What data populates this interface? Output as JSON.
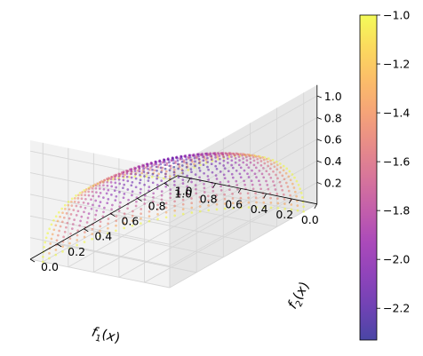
{
  "chart_data": {
    "type": "scatter",
    "projection": "3d",
    "description_of_points": "dense point cloud on the surface of a spherical octant f1^2+f2^2+f3^2=1, f1,f2,f3 in [0,1], colored by value",
    "surface": "unit sphere octant",
    "xlabel": "$f_1(x)$",
    "ylabel": "$f_2(x)$",
    "zlabel": "",
    "xlim": [
      0,
      1.1
    ],
    "ylim": [
      0,
      1.1
    ],
    "zlim": [
      0,
      1.1
    ],
    "xticks": [
      "0.0",
      "0.2",
      "0.4",
      "0.6",
      "0.8",
      "1.0"
    ],
    "yticks": [
      "0.0",
      "0.2",
      "0.4",
      "0.6",
      "0.8",
      "1.0"
    ],
    "zticks": [
      "0.2",
      "0.4",
      "0.6",
      "0.8",
      "1.0"
    ],
    "colormap": "plasma",
    "alpha": 0.5,
    "grid": true,
    "colorbar": {
      "vmin": -2.33,
      "vmax": -1.0,
      "ticks": [
        "−2.2",
        "−2.0",
        "−1.8",
        "−1.6",
        "−1.4",
        "−1.2",
        "−1.0"
      ]
    }
  },
  "colors": {
    "pane": "#f2f2f2",
    "grid": "#d6d6d6",
    "axis": "#000000"
  }
}
